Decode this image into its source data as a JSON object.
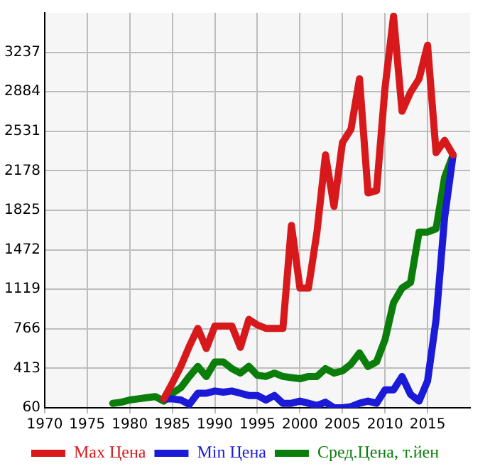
{
  "chart_data": {
    "type": "line",
    "xlim": [
      1970,
      2020
    ],
    "xticks": [
      1970,
      1975,
      1980,
      1985,
      1990,
      1995,
      2000,
      2005,
      2010,
      2015
    ],
    "ylim": [
      60,
      3590
    ],
    "yticks": [
      60,
      413,
      766,
      1119,
      1472,
      1825,
      2178,
      2531,
      2884,
      3237
    ],
    "grid": true,
    "legend": "bottom",
    "marker": "none",
    "line_style": "solid",
    "series": [
      {
        "name": "Max Цена",
        "color": "#d7191c",
        "x": [
          1984,
          1985,
          1986,
          1987,
          1988,
          1989,
          1990,
          1991,
          1992,
          1993,
          1994,
          1995,
          1996,
          1997,
          1998,
          1999,
          2000,
          2001,
          2002,
          2003,
          2004,
          2005,
          2006,
          2007,
          2008,
          2009,
          2010,
          2011,
          2012,
          2013,
          2014,
          2015,
          2016,
          2017,
          2018
        ],
        "values": [
          140,
          280,
          430,
          610,
          770,
          590,
          790,
          790,
          790,
          600,
          850,
          800,
          770,
          770,
          770,
          1690,
          1130,
          1130,
          1630,
          2320,
          1860,
          2430,
          2550,
          3000,
          1980,
          2000,
          2920,
          3560,
          2710,
          2880,
          3000,
          3300,
          2340,
          2450,
          2320
        ]
      },
      {
        "name": "Min Цена",
        "color": "#1a1ad7",
        "x": [
          1984,
          1985,
          1986,
          1987,
          1988,
          1989,
          1990,
          1991,
          1992,
          1993,
          1994,
          1995,
          1996,
          1997,
          1998,
          1999,
          2000,
          2001,
          2002,
          2003,
          2004,
          2005,
          2006,
          2007,
          2008,
          2009,
          2010,
          2011,
          2012,
          2013,
          2014,
          2015,
          2016,
          2017,
          2018
        ],
        "values": [
          140,
          140,
          130,
          90,
          190,
          190,
          210,
          200,
          210,
          190,
          170,
          170,
          130,
          170,
          100,
          100,
          120,
          100,
          80,
          110,
          60,
          60,
          70,
          100,
          120,
          100,
          220,
          220,
          340,
          180,
          120,
          300,
          850,
          1760,
          2320
        ]
      },
      {
        "name": "Сред.Цена, т.йен",
        "color": "#0a7d0a",
        "x": [
          1978,
          1979,
          1980,
          1981,
          1982,
          1983,
          1984,
          1985,
          1986,
          1987,
          1988,
          1989,
          1990,
          1991,
          1992,
          1993,
          1994,
          1995,
          1996,
          1997,
          1998,
          1999,
          2000,
          2001,
          2002,
          2003,
          2004,
          2005,
          2006,
          2007,
          2008,
          2009,
          2010,
          2011,
          2012,
          2013,
          2014,
          2015,
          2016,
          2017,
          2018
        ],
        "values": [
          100,
          110,
          130,
          140,
          150,
          160,
          120,
          190,
          240,
          340,
          430,
          340,
          470,
          470,
          410,
          370,
          430,
          350,
          340,
          370,
          340,
          330,
          320,
          340,
          340,
          410,
          370,
          390,
          450,
          550,
          430,
          470,
          670,
          1000,
          1130,
          1180,
          1630,
          1630,
          1660,
          2120,
          2320
        ]
      }
    ]
  }
}
